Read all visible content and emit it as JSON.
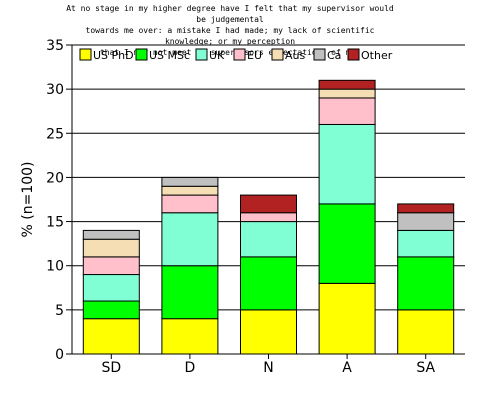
{
  "chart_data": {
    "type": "bar",
    "stacked": true,
    "title": "At no stage in my higher degree have I felt that my supervisor would be judgemental\ntowards me over: a mistake I had made; my lack of scientific knowledge; or my perception\nthat I may not meet my supervisors expectations of me.",
    "ylabel": "% (n=100)",
    "xlabel": "",
    "categories": [
      "SD",
      "D",
      "N",
      "A",
      "SA"
    ],
    "ylim": [
      0,
      35
    ],
    "yticks": [
      0,
      5,
      10,
      15,
      20,
      25,
      30,
      35
    ],
    "grid": "horizontal",
    "legend_position": "top-left",
    "series": [
      {
        "name": "US PhD",
        "color": "#ffff00",
        "values": [
          4,
          4,
          5,
          8,
          5
        ]
      },
      {
        "name": "US MSc",
        "color": "#00ff00",
        "values": [
          2,
          6,
          6,
          9,
          6
        ]
      },
      {
        "name": "UK",
        "color": "#80ffd4",
        "values": [
          3,
          6,
          4,
          9,
          3
        ]
      },
      {
        "name": "EU",
        "color": "#ffc0cb",
        "values": [
          2,
          2,
          1,
          3,
          0
        ]
      },
      {
        "name": "Aus",
        "color": "#f5deb3",
        "values": [
          2,
          1,
          0,
          1,
          0
        ]
      },
      {
        "name": "Ca",
        "color": "#c0c0c0",
        "values": [
          1,
          1,
          0,
          0,
          2
        ]
      },
      {
        "name": "Other",
        "color": "#b22222",
        "values": [
          0,
          0,
          2,
          1,
          1
        ]
      }
    ]
  }
}
